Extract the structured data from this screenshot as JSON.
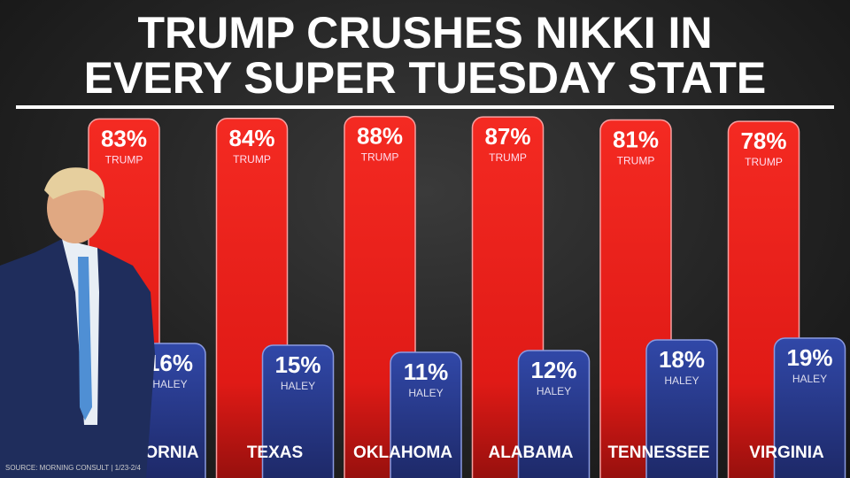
{
  "chart_data": {
    "type": "bar",
    "title": "TRUMP CRUSHES NIKKI IN EVERY SUPER TUESDAY STATE",
    "title_lines": [
      "TRUMP CRUSHES NIKKI IN",
      "EVERY SUPER TUESDAY STATE"
    ],
    "categories": [
      "CALIFORNIA",
      "TEXAS",
      "OKLAHOMA",
      "ALABAMA",
      "TENNESSEE",
      "VIRGINIA"
    ],
    "series": [
      {
        "name": "TRUMP",
        "values": [
          83,
          84,
          88,
          87,
          81,
          78
        ],
        "color": "#f0201c"
      },
      {
        "name": "HALEY",
        "values": [
          16,
          15,
          11,
          12,
          18,
          19
        ],
        "color": "#2a3c9a"
      }
    ],
    "value_suffix": "%",
    "xlabel": "",
    "ylabel": "",
    "ylim": [
      0,
      100
    ],
    "grid": false,
    "legend": "none",
    "source": "SOURCE: MORNING CONSULT | 1/23-2/4"
  }
}
